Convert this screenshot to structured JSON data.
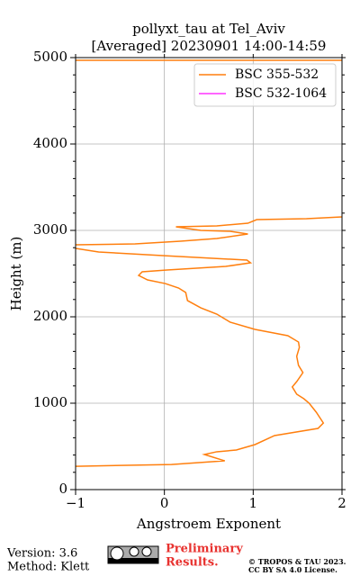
{
  "chart_data": {
    "type": "line",
    "title": [
      "pollyxt_tau at Tel_Aviv",
      "[Averaged] 20230901 14:00-14:59"
    ],
    "xlabel": "Angstroem Exponent",
    "ylabel": "Height (m)",
    "xlim": [
      -1,
      2
    ],
    "ylim": [
      0,
      5000
    ],
    "xticks": [
      {
        "value": -1,
        "label": "−1"
      },
      0,
      1,
      2
    ],
    "yticks": [
      0,
      1000,
      2000,
      3000,
      4000,
      5000
    ],
    "yminor_ticks": [
      200,
      400,
      600,
      800,
      1200,
      1400,
      1600,
      1800,
      2200,
      2400,
      2600,
      2800,
      3200,
      3400,
      3600,
      3800,
      4200,
      4400,
      4600,
      4800
    ],
    "grid": true,
    "legend": "upper right",
    "series": [
      {
        "name": "BSC 355-532",
        "color": "#ff7f0e",
        "x": [
          -1.0,
          0.08,
          0.68,
          0.45,
          0.59,
          0.81,
          1.02,
          1.24,
          1.73,
          1.79,
          1.71,
          1.63,
          1.57,
          1.49,
          1.44,
          1.49,
          1.56,
          1.51,
          1.49,
          1.52,
          1.51,
          1.39,
          1.02,
          0.74,
          0.59,
          0.41,
          0.26,
          0.24,
          0.16,
          0.01,
          -0.19,
          -0.29,
          -0.25,
          0.03,
          0.69,
          0.97,
          0.93,
          -0.02,
          -0.74,
          -1.0,
          null,
          -1.0,
          -0.33,
          0.18,
          0.59,
          0.94,
          0.74,
          0.41,
          0.13,
          0.59,
          0.94,
          1.04,
          1.6,
          2.0,
          null,
          -1.0,
          2.0
        ],
        "values": [
          270,
          290,
          333,
          406,
          438,
          458,
          521,
          625,
          708,
          771,
          896,
          1000,
          1052,
          1104,
          1188,
          1250,
          1354,
          1438,
          1542,
          1646,
          1708,
          1781,
          1854,
          1938,
          2031,
          2104,
          2188,
          2281,
          2333,
          2385,
          2427,
          2479,
          2521,
          2542,
          2583,
          2625,
          2656,
          2708,
          2750,
          2792,
          null,
          2833,
          2844,
          2875,
          2906,
          2958,
          2990,
          3000,
          3042,
          3052,
          3083,
          3125,
          3135,
          3156,
          null,
          4969,
          4969
        ]
      },
      {
        "name": "BSC 532-1064",
        "color": "#ff33ff",
        "x": [],
        "values": []
      }
    ],
    "footer": {
      "version": "Version: 3.6",
      "method": "Method: Klett",
      "status": [
        "Preliminary",
        "Results."
      ],
      "copyright": [
        "© TROPOS & TAU 2023.",
        "CC BY SA 4.0 License."
      ]
    }
  }
}
